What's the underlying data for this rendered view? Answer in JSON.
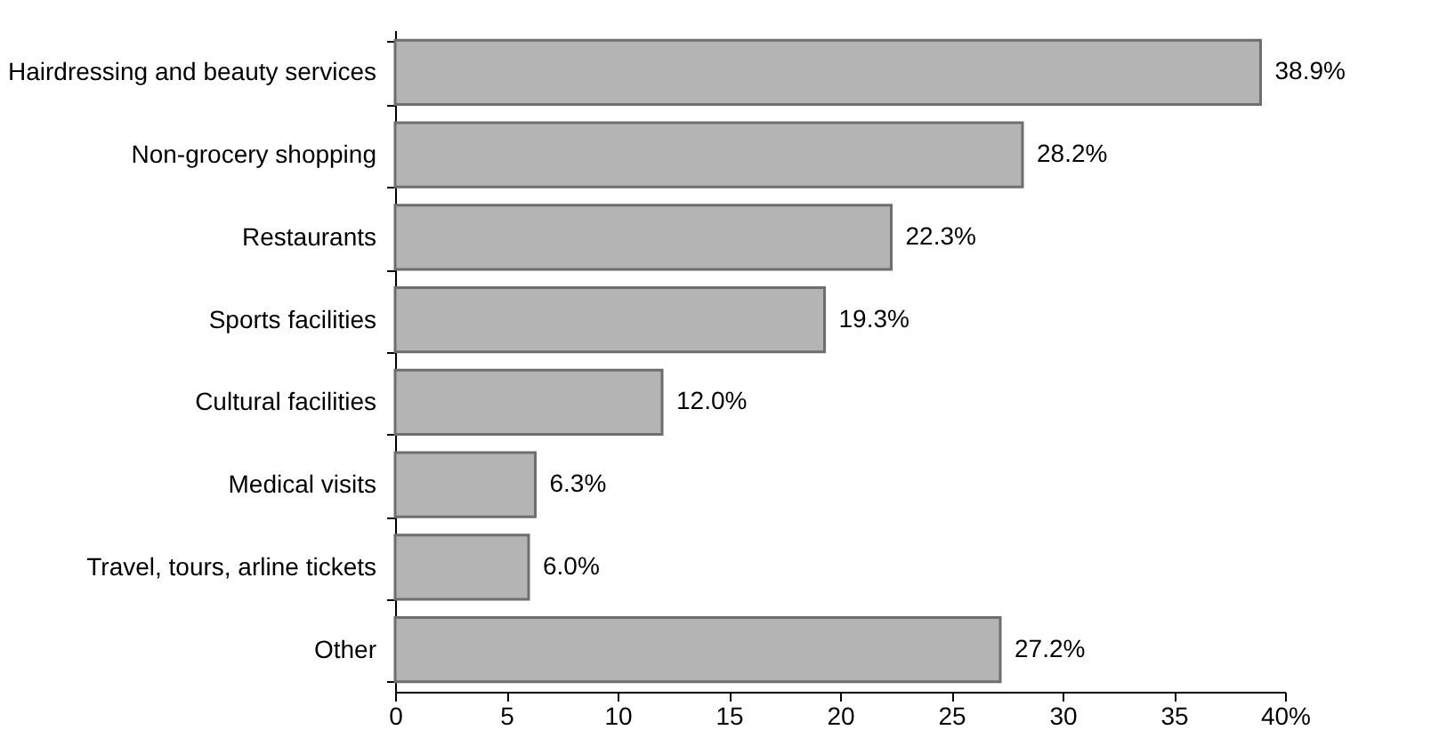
{
  "chart_data": {
    "type": "bar",
    "orientation": "horizontal",
    "categories": [
      "Hairdressing and beauty services",
      "Non-grocery shopping",
      "Restaurants",
      "Sports facilities",
      "Cultural facilities",
      "Medical visits",
      "Travel, tours, arline tickets",
      "Other"
    ],
    "values": [
      38.9,
      28.2,
      22.3,
      19.3,
      12.0,
      6.3,
      6.0,
      27.2
    ],
    "value_labels": [
      "38.9%",
      "28.2%",
      "22.3%",
      "19.3%",
      "12.0%",
      "6.3%",
      "6.0%",
      "27.2%"
    ],
    "color": "#b4b4b4",
    "xlim": [
      0,
      40
    ],
    "xticks": [
      0,
      5,
      10,
      15,
      20,
      25,
      30,
      35,
      {
        "value": 40,
        "label": "40%"
      }
    ],
    "grid": false
  }
}
